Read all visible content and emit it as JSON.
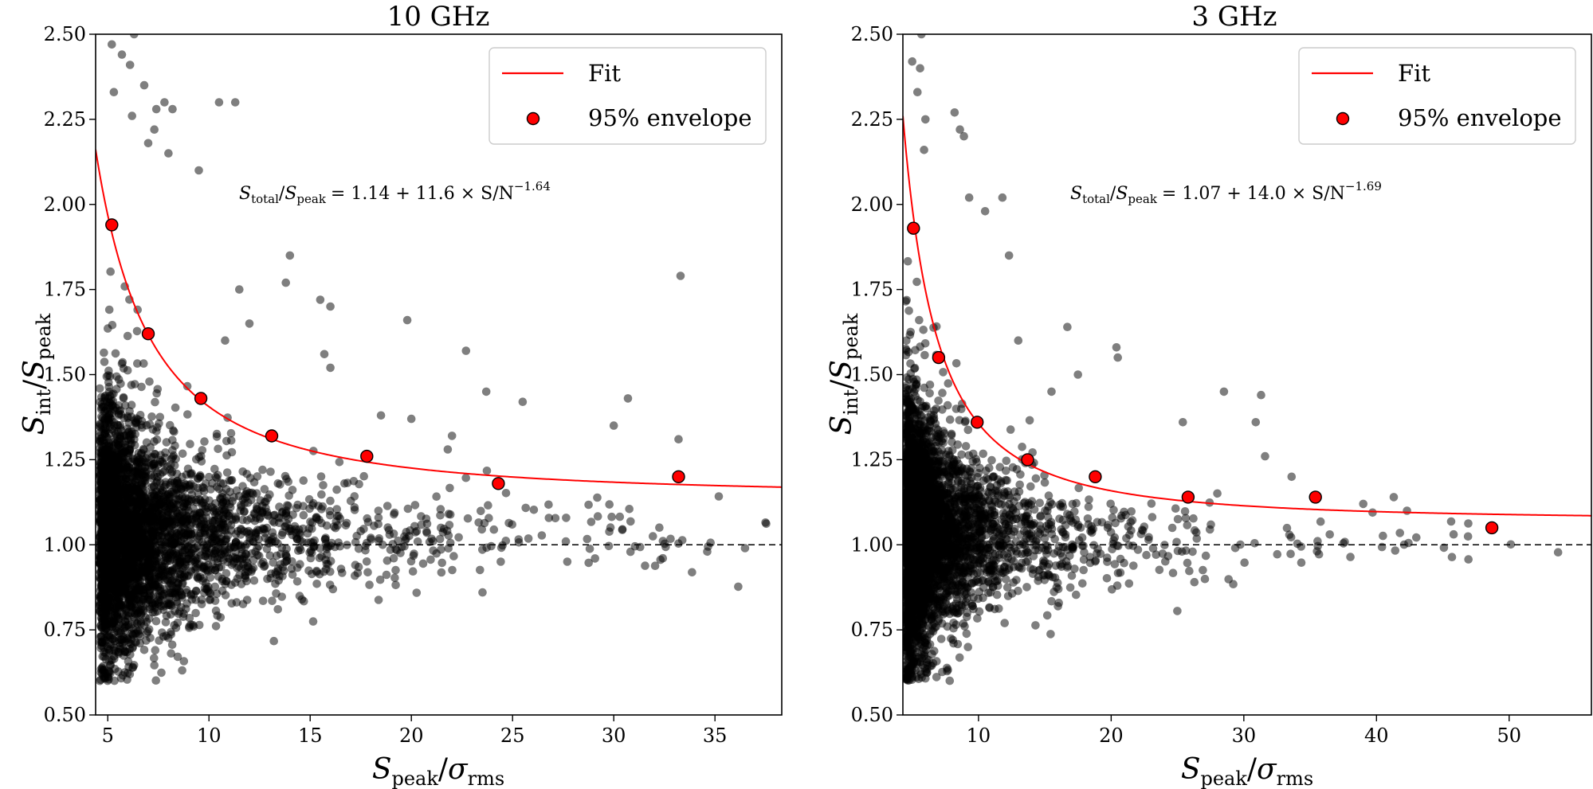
{
  "chart_data": [
    {
      "type": "scatter",
      "title": "10 GHz",
      "xlabel": {
        "main": "S",
        "sub1": "peak",
        "sep": "/",
        "greek": "σ",
        "sub2": "rms"
      },
      "ylabel": {
        "main": "S",
        "sub1": "int",
        "sep": "/",
        "main2": "S",
        "sub2": "peak"
      },
      "xlim": [
        4.4,
        38.3
      ],
      "ylim": [
        0.5,
        2.5
      ],
      "xticks": [
        5,
        10,
        15,
        20,
        25,
        30,
        35
      ],
      "yticks": [
        0.5,
        0.75,
        1.0,
        1.25,
        1.5,
        1.75,
        2.0,
        2.25,
        2.5
      ],
      "yticklabels": [
        "0.50",
        "0.75",
        "1.00",
        "1.25",
        "1.50",
        "1.75",
        "2.00",
        "2.25",
        "2.50"
      ],
      "fit": {
        "a": 1.14,
        "b": 11.6,
        "c": -1.64
      },
      "reference_y": 1.0,
      "equation": {
        "lhs_a": "S",
        "lhs_a_sub": "total",
        "sep": "/",
        "lhs_b": "S",
        "lhs_b_sub": "peak",
        "rhs": "= 1.14 + 11.6 × S/N",
        "exp": "−1.64"
      },
      "envelope": [
        {
          "x": 5.2,
          "y": 1.94
        },
        {
          "x": 7.0,
          "y": 1.62
        },
        {
          "x": 9.6,
          "y": 1.43
        },
        {
          "x": 13.1,
          "y": 1.32
        },
        {
          "x": 17.8,
          "y": 1.26
        },
        {
          "x": 24.3,
          "y": 1.18
        },
        {
          "x": 33.2,
          "y": 1.2
        }
      ],
      "scatter_spec": {
        "n": 3800,
        "seed": 11,
        "xmin": 4.6,
        "xmax": 38.0,
        "alpha": 2.1
      },
      "outliers": [
        {
          "x": 5.2,
          "y": 2.47
        },
        {
          "x": 6.3,
          "y": 2.5
        },
        {
          "x": 5.7,
          "y": 2.44
        },
        {
          "x": 6.1,
          "y": 2.41
        },
        {
          "x": 5.3,
          "y": 2.33
        },
        {
          "x": 6.8,
          "y": 2.35
        },
        {
          "x": 6.2,
          "y": 2.26
        },
        {
          "x": 7.4,
          "y": 2.28
        },
        {
          "x": 7.8,
          "y": 2.3
        },
        {
          "x": 8.2,
          "y": 2.28
        },
        {
          "x": 10.5,
          "y": 2.3
        },
        {
          "x": 11.3,
          "y": 2.3
        },
        {
          "x": 7.3,
          "y": 2.22
        },
        {
          "x": 9.5,
          "y": 2.1
        },
        {
          "x": 8.0,
          "y": 2.15
        },
        {
          "x": 7.0,
          "y": 2.18
        },
        {
          "x": 14.0,
          "y": 1.85
        },
        {
          "x": 15.5,
          "y": 1.72
        },
        {
          "x": 16.0,
          "y": 1.7
        },
        {
          "x": 13.8,
          "y": 1.77
        },
        {
          "x": 19.8,
          "y": 1.66
        },
        {
          "x": 22.7,
          "y": 1.57
        },
        {
          "x": 15.7,
          "y": 1.56
        },
        {
          "x": 23.7,
          "y": 1.45
        },
        {
          "x": 25.5,
          "y": 1.42
        },
        {
          "x": 30.7,
          "y": 1.43
        },
        {
          "x": 33.3,
          "y": 1.79
        },
        {
          "x": 33.2,
          "y": 1.31
        },
        {
          "x": 30.0,
          "y": 1.35
        },
        {
          "x": 21.8,
          "y": 1.28
        },
        {
          "x": 20.0,
          "y": 1.37
        },
        {
          "x": 18.5,
          "y": 1.38
        },
        {
          "x": 11.5,
          "y": 1.75
        },
        {
          "x": 12.0,
          "y": 1.65
        },
        {
          "x": 10.8,
          "y": 1.6
        },
        {
          "x": 16.0,
          "y": 1.52
        }
      ],
      "legend": [
        {
          "kind": "line",
          "label": "Fit",
          "color": "#ff0000"
        },
        {
          "kind": "marker",
          "label": "95% envelope",
          "color": "#ff0000"
        }
      ]
    },
    {
      "type": "scatter",
      "title": "3 GHz",
      "xlabel": {
        "main": "S",
        "sub1": "peak",
        "sep": "/",
        "greek": "σ",
        "sub2": "rms"
      },
      "ylabel": {
        "main": "S",
        "sub1": "int",
        "sep": "/",
        "main2": "S",
        "sub2": "peak"
      },
      "xlim": [
        4.3,
        56.2
      ],
      "ylim": [
        0.5,
        2.5
      ],
      "xticks": [
        10,
        20,
        30,
        40,
        50
      ],
      "yticks": [
        0.5,
        0.75,
        1.0,
        1.25,
        1.5,
        1.75,
        2.0,
        2.25,
        2.5
      ],
      "yticklabels": [
        "0.50",
        "0.75",
        "1.00",
        "1.25",
        "1.50",
        "1.75",
        "2.00",
        "2.25",
        "2.50"
      ],
      "fit": {
        "a": 1.07,
        "b": 14.0,
        "c": -1.69
      },
      "reference_y": 1.0,
      "equation": {
        "lhs_a": "S",
        "lhs_a_sub": "total",
        "sep": "/",
        "lhs_b": "S",
        "lhs_b_sub": "peak",
        "rhs": "= 1.07 + 14.0 × S/N",
        "exp": "−1.69"
      },
      "envelope": [
        {
          "x": 5.1,
          "y": 1.93
        },
        {
          "x": 7.0,
          "y": 1.55
        },
        {
          "x": 9.9,
          "y": 1.36
        },
        {
          "x": 13.7,
          "y": 1.25
        },
        {
          "x": 18.8,
          "y": 1.2
        },
        {
          "x": 25.8,
          "y": 1.14
        },
        {
          "x": 35.4,
          "y": 1.14
        },
        {
          "x": 48.7,
          "y": 1.05
        }
      ],
      "scatter_spec": {
        "n": 3800,
        "seed": 23,
        "xmin": 4.5,
        "xmax": 56.0,
        "alpha": 2.3
      },
      "outliers": [
        {
          "x": 5.7,
          "y": 2.5
        },
        {
          "x": 5.0,
          "y": 2.42
        },
        {
          "x": 5.6,
          "y": 2.4
        },
        {
          "x": 5.4,
          "y": 2.33
        },
        {
          "x": 6.0,
          "y": 2.25
        },
        {
          "x": 8.2,
          "y": 2.27
        },
        {
          "x": 8.6,
          "y": 2.22
        },
        {
          "x": 8.9,
          "y": 2.2
        },
        {
          "x": 5.9,
          "y": 2.16
        },
        {
          "x": 11.8,
          "y": 2.02
        },
        {
          "x": 9.3,
          "y": 2.02
        },
        {
          "x": 10.5,
          "y": 1.98
        },
        {
          "x": 12.3,
          "y": 1.85
        },
        {
          "x": 16.7,
          "y": 1.64
        },
        {
          "x": 20.4,
          "y": 1.58
        },
        {
          "x": 20.5,
          "y": 1.55
        },
        {
          "x": 15.5,
          "y": 1.45
        },
        {
          "x": 17.5,
          "y": 1.5
        },
        {
          "x": 28.5,
          "y": 1.45
        },
        {
          "x": 31.3,
          "y": 1.44
        },
        {
          "x": 30.9,
          "y": 1.36
        },
        {
          "x": 25.4,
          "y": 1.36
        },
        {
          "x": 31.6,
          "y": 1.26
        },
        {
          "x": 33.6,
          "y": 1.2
        },
        {
          "x": 41.3,
          "y": 1.14
        },
        {
          "x": 39.0,
          "y": 1.12
        },
        {
          "x": 42.3,
          "y": 1.1
        },
        {
          "x": 13.0,
          "y": 1.6
        }
      ],
      "legend": [
        {
          "kind": "line",
          "label": "Fit",
          "color": "#ff0000"
        },
        {
          "kind": "marker",
          "label": "95% envelope",
          "color": "#ff0000"
        }
      ]
    }
  ]
}
